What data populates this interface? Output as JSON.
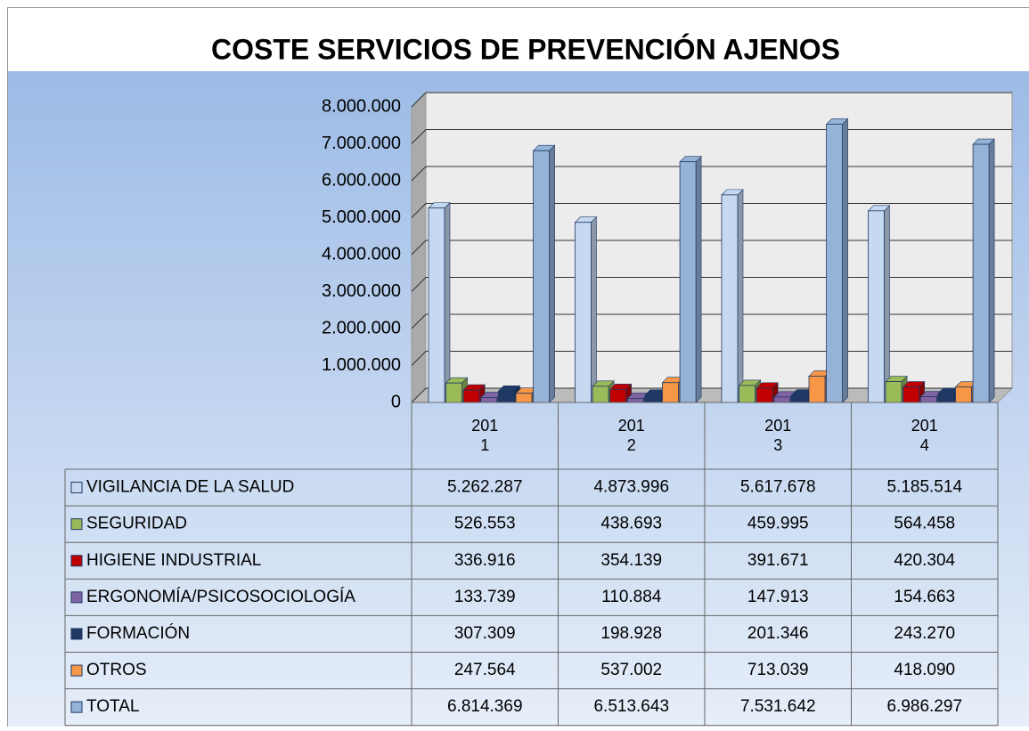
{
  "chart_data": {
    "type": "bar",
    "title": "COSTE SERVICIOS DE PREVENCIÓN AJENOS",
    "categories": [
      "2011",
      "2012",
      "2013",
      "2014"
    ],
    "ylim": [
      0,
      8000000
    ],
    "yticks": [
      0,
      {
        "value": 1000000,
        "label": "1.000.000"
      },
      {
        "value": 2000000,
        "label": "2.000.000"
      },
      {
        "value": 3000000,
        "label": "3.000.000"
      },
      {
        "value": 4000000,
        "label": "4.000.000"
      },
      {
        "value": 5000000,
        "label": "5.000.000"
      },
      {
        "value": 6000000,
        "label": "6.000.000"
      },
      {
        "value": 7000000,
        "label": "7.000.000"
      },
      {
        "value": 8000000,
        "label": "8.000.000"
      }
    ],
    "grid": true,
    "series": [
      {
        "name": "VIGILANCIA DE LA SALUD",
        "color": "#c6d9f1",
        "values": [
          5262287,
          4873996,
          5617678,
          5185514
        ],
        "value_labels": [
          "5.262.287",
          "4.873.996",
          "5.617.678",
          "5.185.514"
        ]
      },
      {
        "name": "SEGURIDAD",
        "color": "#9bbb59",
        "values": [
          526553,
          438693,
          459995,
          564458
        ],
        "value_labels": [
          "526.553",
          "438.693",
          "459.995",
          "564.458"
        ]
      },
      {
        "name": "HIGIENE INDUSTRIAL",
        "color": "#c00000",
        "values": [
          336916,
          354139,
          391671,
          420304
        ],
        "value_labels": [
          "336.916",
          "354.139",
          "391.671",
          "420.304"
        ]
      },
      {
        "name": "ERGONOMÍA/PSICOSOCIOLOGÍA",
        "color": "#8064a2",
        "values": [
          133739,
          110884,
          147913,
          154663
        ],
        "value_labels": [
          "133.739",
          "110.884",
          "147.913",
          "154.663"
        ]
      },
      {
        "name": "FORMACIÓN",
        "color": "#1f3864",
        "values": [
          307309,
          198928,
          201346,
          243270
        ],
        "value_labels": [
          "307.309",
          "198.928",
          "201.346",
          "243.270"
        ]
      },
      {
        "name": "OTROS",
        "color": "#f79646",
        "values": [
          247564,
          537002,
          713039,
          418090
        ],
        "value_labels": [
          "247.564",
          "537.002",
          "713.039",
          "418.090"
        ]
      },
      {
        "name": "TOTAL",
        "color": "#95b3d7",
        "values": [
          6814369,
          6513643,
          7531642,
          6986297
        ],
        "value_labels": [
          "6.814.369",
          "6.513.643",
          "7.531.642",
          "6.986.297"
        ]
      }
    ]
  }
}
